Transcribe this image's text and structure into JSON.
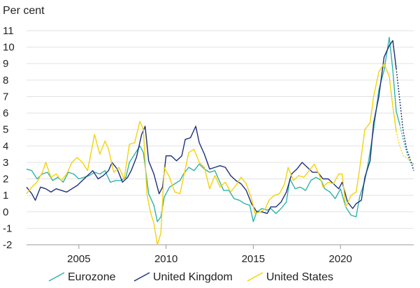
{
  "chart_data": {
    "type": "line",
    "unit_label": "Per cent",
    "xlim": [
      2002.0,
      2024.2
    ],
    "ylim": [
      -2,
      11
    ],
    "x_ticks": [
      2005,
      2010,
      2015,
      2020
    ],
    "y_ticks": [
      -2,
      -1,
      0,
      1,
      2,
      3,
      4,
      5,
      6,
      7,
      8,
      9,
      10,
      11
    ],
    "grid": "horizontal",
    "legend_position": "bottom",
    "series": [
      {
        "name": "Eurozone",
        "color": "#2fb3a8",
        "values": [
          [
            2002.0,
            2.6
          ],
          [
            2002.3,
            2.5
          ],
          [
            2002.6,
            2.0
          ],
          [
            2002.9,
            2.3
          ],
          [
            2003.2,
            2.4
          ],
          [
            2003.5,
            1.9
          ],
          [
            2003.8,
            2.1
          ],
          [
            2004.1,
            1.8
          ],
          [
            2004.4,
            2.4
          ],
          [
            2004.7,
            2.3
          ],
          [
            2005.0,
            2.0
          ],
          [
            2005.3,
            2.1
          ],
          [
            2005.6,
            2.2
          ],
          [
            2005.9,
            2.4
          ],
          [
            2006.2,
            2.3
          ],
          [
            2006.5,
            2.5
          ],
          [
            2006.8,
            1.8
          ],
          [
            2007.1,
            1.9
          ],
          [
            2007.4,
            1.9
          ],
          [
            2007.7,
            2.1
          ],
          [
            2007.9,
            3.0
          ],
          [
            2008.2,
            3.5
          ],
          [
            2008.5,
            4.0
          ],
          [
            2008.7,
            3.6
          ],
          [
            2009.0,
            1.1
          ],
          [
            2009.3,
            0.4
          ],
          [
            2009.5,
            -0.6
          ],
          [
            2009.7,
            -0.3
          ],
          [
            2009.9,
            0.9
          ],
          [
            2010.2,
            1.5
          ],
          [
            2010.5,
            1.7
          ],
          [
            2010.8,
            1.9
          ],
          [
            2011.0,
            2.3
          ],
          [
            2011.3,
            2.7
          ],
          [
            2011.6,
            2.5
          ],
          [
            2011.9,
            2.9
          ],
          [
            2012.2,
            2.6
          ],
          [
            2012.5,
            2.4
          ],
          [
            2012.8,
            2.5
          ],
          [
            2013.0,
            2.0
          ],
          [
            2013.3,
            1.3
          ],
          [
            2013.6,
            1.3
          ],
          [
            2013.9,
            0.8
          ],
          [
            2014.2,
            0.7
          ],
          [
            2014.5,
            0.5
          ],
          [
            2014.8,
            0.4
          ],
          [
            2015.0,
            -0.6
          ],
          [
            2015.2,
            0.0
          ],
          [
            2015.5,
            0.2
          ],
          [
            2015.8,
            0.1
          ],
          [
            2016.0,
            0.2
          ],
          [
            2016.3,
            -0.1
          ],
          [
            2016.6,
            0.2
          ],
          [
            2016.9,
            0.6
          ],
          [
            2017.1,
            2.0
          ],
          [
            2017.4,
            1.4
          ],
          [
            2017.7,
            1.5
          ],
          [
            2018.0,
            1.3
          ],
          [
            2018.3,
            1.9
          ],
          [
            2018.6,
            2.1
          ],
          [
            2018.9,
            1.9
          ],
          [
            2019.1,
            1.4
          ],
          [
            2019.4,
            1.2
          ],
          [
            2019.7,
            0.8
          ],
          [
            2020.0,
            1.4
          ],
          [
            2020.3,
            0.3
          ],
          [
            2020.6,
            -0.2
          ],
          [
            2020.9,
            -0.3
          ],
          [
            2021.1,
            0.9
          ],
          [
            2021.4,
            1.9
          ],
          [
            2021.6,
            3.0
          ],
          [
            2021.9,
            5.0
          ],
          [
            2022.2,
            7.4
          ],
          [
            2022.5,
            8.6
          ],
          [
            2022.8,
            10.6
          ],
          [
            2023.0,
            8.6
          ],
          [
            2023.2,
            6.1
          ],
          [
            2023.4,
            5.3
          ]
        ]
      },
      {
        "name": "United Kingdom",
        "color": "#1e2f7a",
        "values": [
          [
            2002.0,
            1.5
          ],
          [
            2002.3,
            1.1
          ],
          [
            2002.5,
            0.7
          ],
          [
            2002.8,
            1.5
          ],
          [
            2003.1,
            1.4
          ],
          [
            2003.4,
            1.2
          ],
          [
            2003.7,
            1.4
          ],
          [
            2004.0,
            1.3
          ],
          [
            2004.3,
            1.2
          ],
          [
            2004.6,
            1.4
          ],
          [
            2004.9,
            1.6
          ],
          [
            2005.2,
            1.9
          ],
          [
            2005.5,
            2.2
          ],
          [
            2005.8,
            2.5
          ],
          [
            2006.1,
            2.0
          ],
          [
            2006.4,
            2.2
          ],
          [
            2006.7,
            2.5
          ],
          [
            2006.9,
            3.0
          ],
          [
            2007.2,
            2.6
          ],
          [
            2007.5,
            1.8
          ],
          [
            2007.8,
            2.1
          ],
          [
            2008.0,
            2.5
          ],
          [
            2008.3,
            3.3
          ],
          [
            2008.6,
            4.7
          ],
          [
            2008.8,
            5.2
          ],
          [
            2009.0,
            3.1
          ],
          [
            2009.3,
            2.3
          ],
          [
            2009.6,
            1.1
          ],
          [
            2009.8,
            1.5
          ],
          [
            2010.0,
            3.4
          ],
          [
            2010.3,
            3.4
          ],
          [
            2010.6,
            3.1
          ],
          [
            2010.9,
            3.4
          ],
          [
            2011.1,
            4.4
          ],
          [
            2011.4,
            4.5
          ],
          [
            2011.7,
            5.2
          ],
          [
            2011.9,
            4.2
          ],
          [
            2012.2,
            3.5
          ],
          [
            2012.5,
            2.6
          ],
          [
            2012.8,
            2.7
          ],
          [
            2013.1,
            2.8
          ],
          [
            2013.4,
            2.7
          ],
          [
            2013.7,
            2.2
          ],
          [
            2014.0,
            1.9
          ],
          [
            2014.3,
            1.7
          ],
          [
            2014.6,
            1.3
          ],
          [
            2014.9,
            0.5
          ],
          [
            2015.2,
            0.0
          ],
          [
            2015.5,
            0.0
          ],
          [
            2015.8,
            -0.1
          ],
          [
            2016.0,
            0.3
          ],
          [
            2016.3,
            0.3
          ],
          [
            2016.6,
            0.6
          ],
          [
            2016.9,
            1.2
          ],
          [
            2017.2,
            2.3
          ],
          [
            2017.5,
            2.6
          ],
          [
            2017.8,
            3.0
          ],
          [
            2018.1,
            2.7
          ],
          [
            2018.4,
            2.4
          ],
          [
            2018.7,
            2.4
          ],
          [
            2019.0,
            2.0
          ],
          [
            2019.3,
            2.0
          ],
          [
            2019.6,
            1.7
          ],
          [
            2019.9,
            1.4
          ],
          [
            2020.1,
            1.8
          ],
          [
            2020.4,
            0.6
          ],
          [
            2020.7,
            0.2
          ],
          [
            2020.9,
            0.5
          ],
          [
            2021.2,
            0.7
          ],
          [
            2021.4,
            2.1
          ],
          [
            2021.7,
            3.1
          ],
          [
            2021.9,
            5.4
          ],
          [
            2022.2,
            7.0
          ],
          [
            2022.5,
            9.4
          ],
          [
            2022.8,
            10.1
          ],
          [
            2023.0,
            10.4
          ],
          [
            2023.2,
            8.7
          ]
        ]
      },
      {
        "name": "United States",
        "color": "#f5d20a",
        "values": [
          [
            2002.0,
            1.1
          ],
          [
            2002.3,
            1.5
          ],
          [
            2002.6,
            1.8
          ],
          [
            2002.9,
            2.4
          ],
          [
            2003.1,
            3.0
          ],
          [
            2003.4,
            2.1
          ],
          [
            2003.7,
            2.3
          ],
          [
            2004.0,
            1.9
          ],
          [
            2004.3,
            2.3
          ],
          [
            2004.6,
            3.0
          ],
          [
            2004.9,
            3.3
          ],
          [
            2005.2,
            3.0
          ],
          [
            2005.5,
            2.5
          ],
          [
            2005.7,
            3.6
          ],
          [
            2005.9,
            4.7
          ],
          [
            2006.2,
            3.5
          ],
          [
            2006.5,
            4.3
          ],
          [
            2006.7,
            3.8
          ],
          [
            2007.0,
            2.4
          ],
          [
            2007.3,
            2.7
          ],
          [
            2007.6,
            2.0
          ],
          [
            2007.9,
            4.1
          ],
          [
            2008.2,
            4.2
          ],
          [
            2008.5,
            5.5
          ],
          [
            2008.7,
            5.0
          ],
          [
            2008.9,
            1.1
          ],
          [
            2009.1,
            0.0
          ],
          [
            2009.3,
            -0.7
          ],
          [
            2009.5,
            -2.0
          ],
          [
            2009.7,
            -1.3
          ],
          [
            2009.9,
            2.7
          ],
          [
            2010.2,
            2.1
          ],
          [
            2010.5,
            1.2
          ],
          [
            2010.8,
            1.1
          ],
          [
            2011.0,
            2.1
          ],
          [
            2011.3,
            3.6
          ],
          [
            2011.6,
            3.8
          ],
          [
            2011.9,
            3.0
          ],
          [
            2012.2,
            2.7
          ],
          [
            2012.5,
            1.4
          ],
          [
            2012.8,
            2.2
          ],
          [
            2013.1,
            1.5
          ],
          [
            2013.4,
            1.8
          ],
          [
            2013.7,
            1.2
          ],
          [
            2014.0,
            1.6
          ],
          [
            2014.3,
            2.1
          ],
          [
            2014.6,
            1.7
          ],
          [
            2014.9,
            0.8
          ],
          [
            2015.1,
            -0.1
          ],
          [
            2015.4,
            0.0
          ],
          [
            2015.7,
            0.2
          ],
          [
            2015.9,
            0.7
          ],
          [
            2016.2,
            1.0
          ],
          [
            2016.5,
            1.1
          ],
          [
            2016.8,
            1.7
          ],
          [
            2017.0,
            2.7
          ],
          [
            2017.3,
            1.9
          ],
          [
            2017.6,
            2.2
          ],
          [
            2017.9,
            2.1
          ],
          [
            2018.2,
            2.5
          ],
          [
            2018.5,
            2.9
          ],
          [
            2018.8,
            2.2
          ],
          [
            2019.0,
            1.5
          ],
          [
            2019.3,
            1.8
          ],
          [
            2019.6,
            1.7
          ],
          [
            2019.9,
            2.3
          ],
          [
            2020.1,
            2.3
          ],
          [
            2020.3,
            0.3
          ],
          [
            2020.6,
            1.0
          ],
          [
            2020.9,
            1.2
          ],
          [
            2021.1,
            2.6
          ],
          [
            2021.4,
            5.0
          ],
          [
            2021.7,
            5.4
          ],
          [
            2021.9,
            7.0
          ],
          [
            2022.2,
            8.5
          ],
          [
            2022.5,
            9.0
          ],
          [
            2022.8,
            8.2
          ],
          [
            2023.0,
            6.4
          ],
          [
            2023.2,
            4.9
          ]
        ]
      }
    ],
    "projections": [
      {
        "series": "Eurozone",
        "color": "#2fb3a8",
        "values": [
          [
            2023.4,
            5.3
          ],
          [
            2023.6,
            4.4
          ],
          [
            2023.8,
            3.6
          ],
          [
            2024.0,
            3.0
          ],
          [
            2024.2,
            2.9
          ]
        ]
      },
      {
        "series": "United Kingdom",
        "color": "#1e2f7a",
        "values": [
          [
            2023.2,
            8.7
          ],
          [
            2023.4,
            6.8
          ],
          [
            2023.6,
            4.9
          ],
          [
            2023.8,
            3.8
          ],
          [
            2024.0,
            3.2
          ],
          [
            2024.2,
            2.5
          ]
        ]
      },
      {
        "series": "United States",
        "color": "#f5d20a",
        "values": [
          [
            2023.2,
            4.9
          ],
          [
            2023.4,
            4.0
          ],
          [
            2023.6,
            3.4
          ],
          [
            2023.8,
            3.3
          ],
          [
            2024.0,
            3.1
          ]
        ]
      }
    ]
  }
}
